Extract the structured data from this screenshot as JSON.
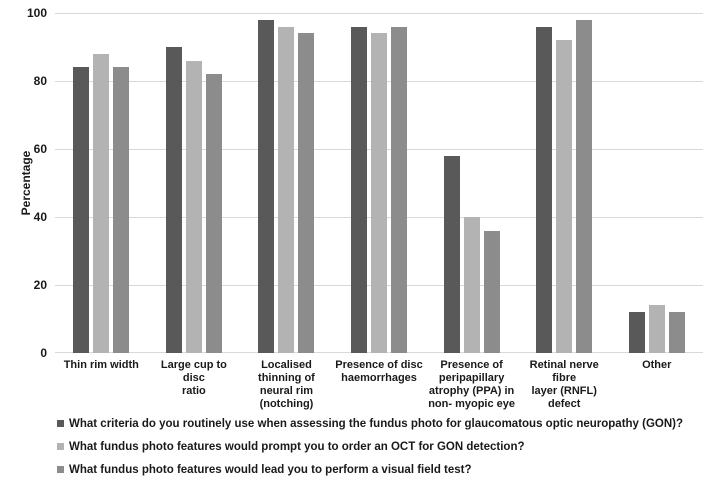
{
  "chart_data": {
    "type": "bar",
    "title": "",
    "xlabel": "",
    "ylabel": "Percentage",
    "ylim": [
      0,
      100
    ],
    "yticks": [
      0,
      20,
      40,
      60,
      80,
      100
    ],
    "grid": "horizontal",
    "gridline_color": "#d9d9d9",
    "legend_position": "bottom-left",
    "categories": [
      "Thin rim width",
      "Large cup to disc ratio",
      "Localised thinning of neural rim (notching)",
      "Presence of disc haemorrhages",
      "Presence of peripapillary atrophy (PPA) in non- myopic eye",
      "Retinal nerve fibre layer (RNFL) defect",
      "Other"
    ],
    "category_lines": [
      [
        "Thin rim width"
      ],
      [
        "Large cup to disc",
        "ratio"
      ],
      [
        "Localised",
        "thinning of",
        "neural rim",
        "(notching)"
      ],
      [
        "Presence of disc",
        "haemorrhages"
      ],
      [
        "Presence of",
        "peripapillary",
        "atrophy (PPA) in",
        "non- myopic eye"
      ],
      [
        "Retinal nerve fibre",
        "layer (RNFL)",
        "defect"
      ],
      [
        "Other"
      ]
    ],
    "series": [
      {
        "name": "What criteria do you routinely use when assessing the fundus photo for glaucomatous optic neuropathy (GON)?",
        "color": "#595959",
        "values": [
          84,
          90,
          98,
          96,
          58,
          96,
          12
        ]
      },
      {
        "name": "What fundus photo features would prompt you to order an OCT for GON detection?",
        "color": "#b3b3b3",
        "values": [
          88,
          86,
          96,
          94,
          40,
          92,
          14
        ]
      },
      {
        "name": "What fundus photo features would lead you to perform a visual field test?",
        "color": "#8c8c8c",
        "values": [
          84,
          82,
          94,
          96,
          36,
          98,
          12
        ]
      }
    ]
  }
}
